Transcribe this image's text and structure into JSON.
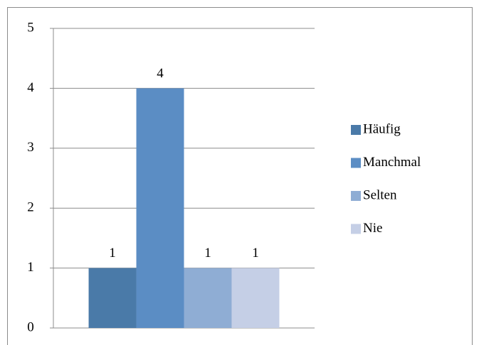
{
  "chart_data": {
    "type": "bar",
    "categories": [
      null
    ],
    "series": [
      {
        "name": "Häufig",
        "color": "#4a7aa8",
        "values": [
          1
        ]
      },
      {
        "name": "Manchmal",
        "color": "#5b8dc4",
        "values": [
          4
        ]
      },
      {
        "name": "Selten",
        "color": "#8fadd4",
        "values": [
          1
        ]
      },
      {
        "name": "Nie",
        "color": "#c5cfe6",
        "values": [
          1
        ]
      }
    ],
    "ylim": [
      0,
      5
    ],
    "yticks": [
      0,
      1,
      2,
      3,
      4,
      5
    ],
    "grid": true,
    "legend": "right"
  }
}
